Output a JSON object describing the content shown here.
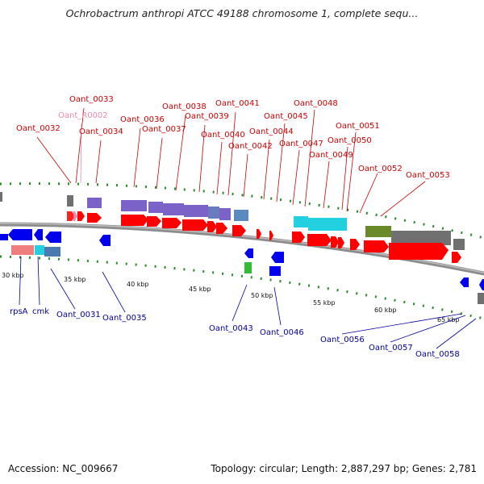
{
  "title": "Ochrobactrum anthropi ATCC 49188 chromosome 1, complete sequ...",
  "footer": {
    "accession": "Accession: NC_009667",
    "topology": "Topology: circular; Length: 2,887,297 bp; Genes: 2,781"
  },
  "colors": {
    "forward_label": "#cc0000",
    "reverse_label": "#000099",
    "rna_label": "#ee88aa",
    "cds_forward": "#ff0000",
    "cds_reverse": "#0000ee",
    "backbone": "#999999"
  },
  "scale_ticks": [
    "30 kbp",
    "35 kbp",
    "40 kbp",
    "45 kbp",
    "50 kbp",
    "55 kbp",
    "60 kbp",
    "65 kbp"
  ],
  "forward_labels": [
    "Oant_0032",
    "Oant_0033",
    "Oant_R0002",
    "Oant_0034",
    "Oant_0036",
    "Oant_0037",
    "Oant_0038",
    "Oant_0039",
    "Oant_0040",
    "Oant_0041",
    "Oant_0042",
    "Oant_0044",
    "Oant_0045",
    "Oant_0047",
    "Oant_0048",
    "Oant_0049",
    "Oant_0050",
    "Oant_0051",
    "Oant_0052",
    "Oant_0053"
  ],
  "reverse_labels": [
    "rpsA",
    "cmk",
    "Oant_0031",
    "Oant_0035",
    "Oant_0043",
    "Oant_0046",
    "Oant_0056",
    "Oant_0057",
    "Oant_0058"
  ]
}
